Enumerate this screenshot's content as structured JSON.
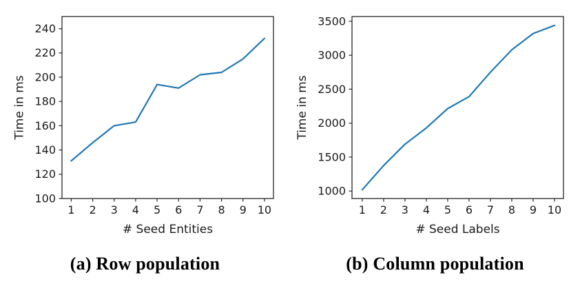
{
  "page": {
    "background": "#ffffff",
    "text_color": "#1a1a1a",
    "axis_color": "#262626"
  },
  "chart_data": [
    {
      "name": "row-population",
      "type": "line",
      "caption": "(a) Row population",
      "xlabel": "# Seed Entities",
      "ylabel": "Time in ms",
      "line_color": "#1f77b4",
      "x": [
        1,
        2,
        3,
        4,
        5,
        6,
        7,
        8,
        9,
        10
      ],
      "values": [
        131,
        146,
        160,
        163,
        194,
        191,
        202,
        204,
        215,
        232
      ],
      "xticks": [
        1,
        2,
        3,
        4,
        5,
        6,
        7,
        8,
        9,
        10
      ],
      "yticks": [
        100,
        120,
        140,
        160,
        180,
        200,
        220,
        240
      ],
      "xlim": [
        0.57,
        10.42
      ],
      "ylim": [
        100,
        250
      ],
      "grid": false,
      "legend": "none"
    },
    {
      "name": "column-population",
      "type": "line",
      "caption": "(b) Column population",
      "xlabel": "# Seed Labels",
      "ylabel": "Time in ms",
      "line_color": "#1f77b4",
      "x": [
        1,
        2,
        3,
        4,
        5,
        6,
        7,
        8,
        9,
        10
      ],
      "values": [
        1020,
        1375,
        1690,
        1930,
        2215,
        2390,
        2750,
        3080,
        3320,
        3440
      ],
      "xticks": [
        1,
        2,
        3,
        4,
        5,
        6,
        7,
        8,
        9,
        10
      ],
      "yticks": [
        1000,
        1500,
        2000,
        2500,
        3000,
        3500
      ],
      "xlim": [
        0.52,
        10.42
      ],
      "ylim": [
        890,
        3570
      ],
      "grid": false,
      "legend": "none"
    }
  ]
}
